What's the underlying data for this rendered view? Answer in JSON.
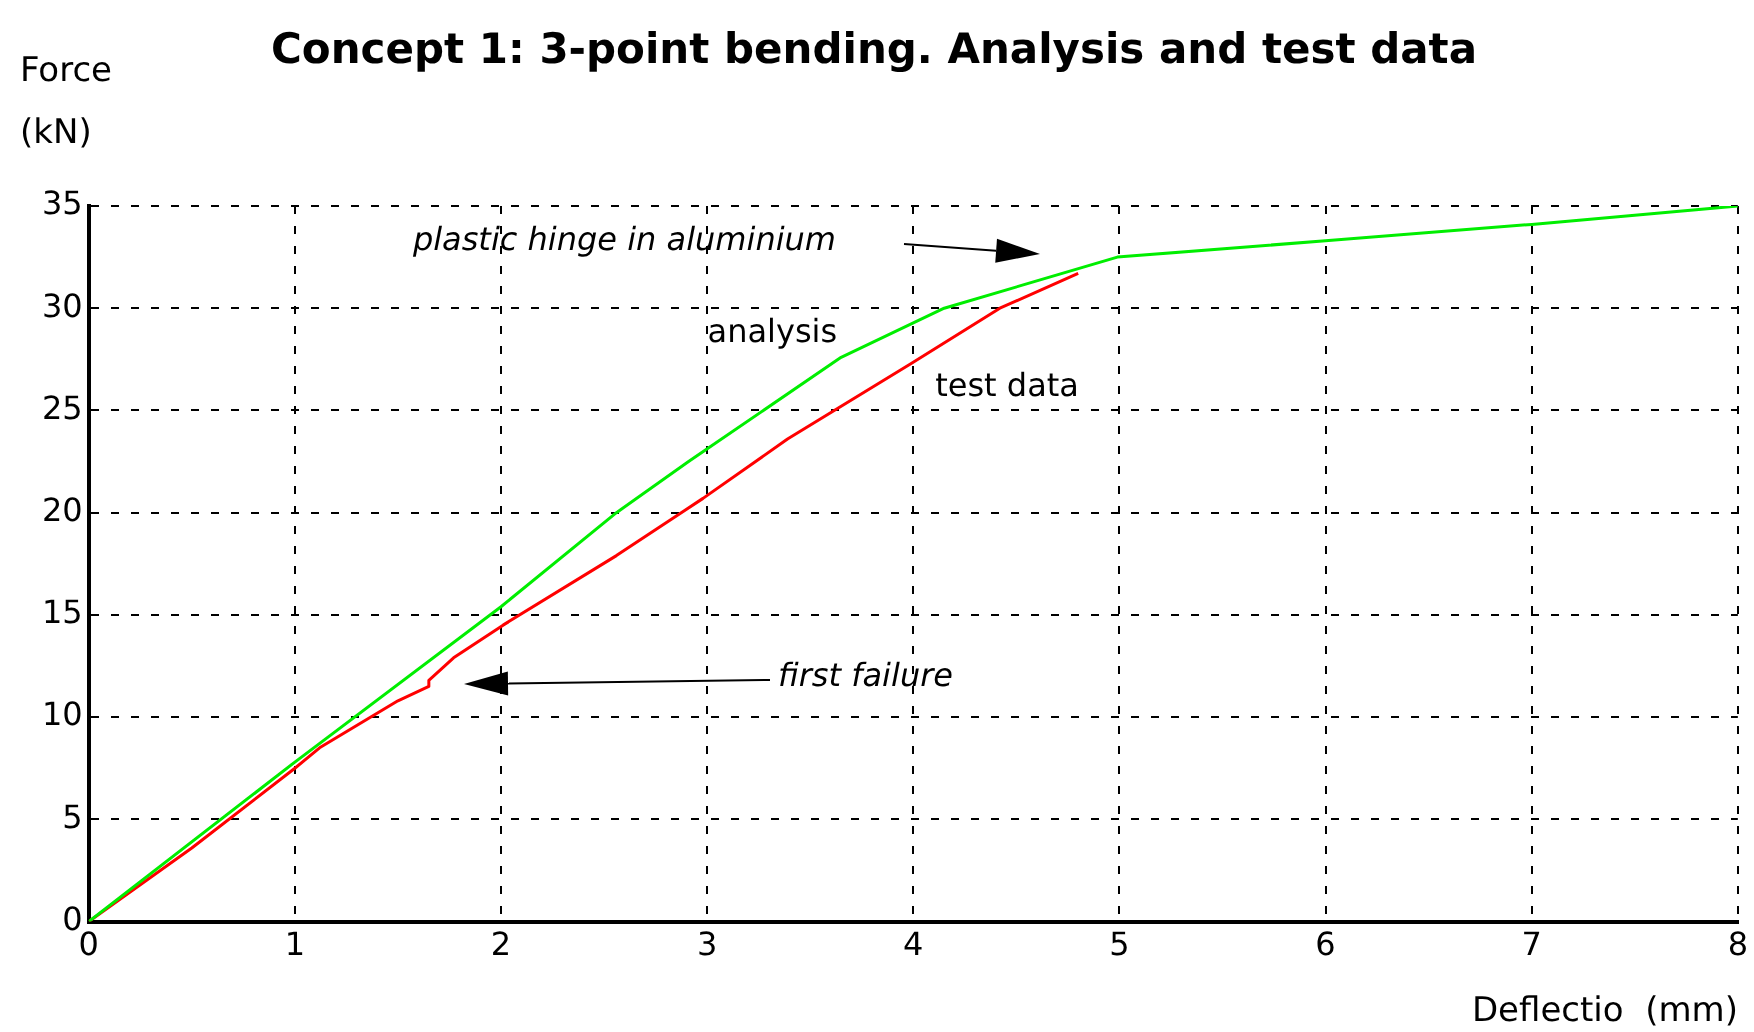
{
  "chart_data": {
    "type": "line",
    "title": "Concept 1: 3-point bending. Analysis and test data",
    "xlabel": "Deflectio  (mm)",
    "ylabel": "Force\n(kN)",
    "xlim": [
      0,
      8
    ],
    "xticks": [
      0,
      1,
      2,
      3,
      4,
      5,
      6,
      7,
      8
    ],
    "ylim": [
      0,
      35
    ],
    "yticks": [
      0,
      5,
      10,
      15,
      20,
      25,
      30,
      35
    ],
    "grid": true,
    "legend": false,
    "marker": "none",
    "line_style": "solid",
    "series": [
      {
        "name": "analysis",
        "color": "#00ee00",
        "x": [
          0,
          1,
          2,
          2.56,
          2.91,
          3.65,
          4.15,
          4.99,
          6,
          7,
          8
        ],
        "values": [
          0,
          7.8,
          15.4,
          20,
          22.5,
          27.6,
          30,
          32.5,
          33.3,
          34.1,
          35
        ]
      },
      {
        "name": "test data",
        "color": "#ff0000",
        "x": [
          0,
          0.5,
          1,
          1.12,
          1.5,
          1.65,
          1.65,
          1.77,
          2.01,
          2.56,
          2.98,
          3.39,
          3.99,
          4.42,
          4.8
        ],
        "values": [
          0,
          3.6,
          7.5,
          8.5,
          10.8,
          11.5,
          11.8,
          12.9,
          14.5,
          17.9,
          20.7,
          23.6,
          27.3,
          30,
          31.7
        ]
      }
    ],
    "annotations": [
      "plastic hinge in aluminium",
      "first failure"
    ]
  }
}
